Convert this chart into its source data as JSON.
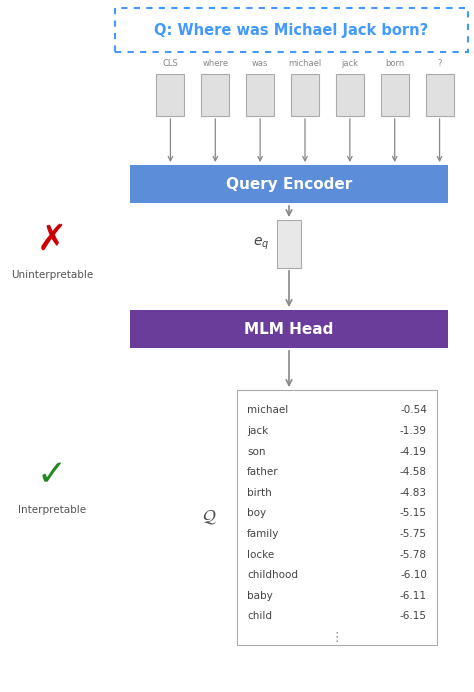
{
  "title_text": "Q: Where was Michael Jack born?",
  "title_color": "#4499ff",
  "title_border_color": "#4499ff",
  "token_labels": [
    "CLS",
    "where",
    "was",
    "michael",
    "jack",
    "born",
    "?"
  ],
  "query_encoder_text": "Query Encoder",
  "query_encoder_color": "#5b8dd9",
  "mlm_head_text": "MLM Head",
  "mlm_head_color": "#6a3d9a",
  "eq_label": "$e_q$",
  "Q_label": "$\\mathcal{Q}$",
  "vocab_words": [
    "michael",
    "jack",
    "son",
    "father",
    "birth",
    "boy",
    "family",
    "locke",
    "childhood",
    "baby",
    "child"
  ],
  "vocab_values": [
    "-0.54",
    "-1.39",
    "-4.19",
    "-4.58",
    "-4.83",
    "-5.15",
    "-5.75",
    "-5.78",
    "-6.10",
    "-6.11",
    "-6.15"
  ],
  "cross_color": "#cc0000",
  "check_color": "#228822",
  "uninterpretable_text": "Uninterpretable",
  "interpretable_text": "Interpretable",
  "arrow_color": "#888888",
  "figw": 4.74,
  "figh": 6.92,
  "dpi": 100
}
